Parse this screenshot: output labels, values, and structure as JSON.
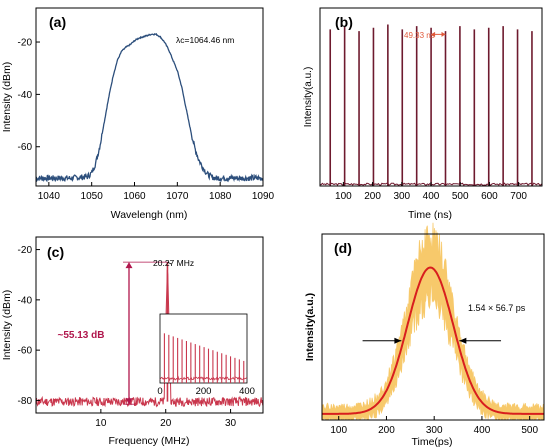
{
  "chart_data": [
    {
      "panel": "(a)",
      "type": "line",
      "xlabel": "Wavelengh (nm)",
      "ylabel": "Intensity (dBm)",
      "xlim": [
        1037,
        1090
      ],
      "ylim": [
        -75,
        -7
      ],
      "xticks": [
        1040,
        1050,
        1060,
        1070,
        1080,
        1090
      ],
      "yticks": [
        -60,
        -40,
        -20
      ],
      "annotation": "λc=1064.46 nm",
      "color": "#2d4f7c",
      "series": [
        {
          "x": [
            1037,
            1045,
            1049,
            1050,
            1051,
            1052,
            1053,
            1054,
            1055,
            1056,
            1057,
            1058,
            1059,
            1060,
            1061,
            1062,
            1063,
            1064,
            1065,
            1066,
            1067,
            1068,
            1069,
            1070,
            1071,
            1072,
            1073,
            1074,
            1075,
            1076,
            1077,
            1078,
            1079,
            1080,
            1090
          ],
          "y": [
            -72,
            -72,
            -71.5,
            -70,
            -66,
            -59,
            -50,
            -41,
            -33,
            -27,
            -23.5,
            -22,
            -21,
            -19.5,
            -18.5,
            -18,
            -17.5,
            -17,
            -17,
            -18,
            -20,
            -23,
            -27,
            -31,
            -37,
            -45,
            -53,
            -60,
            -65,
            -68,
            -70.5,
            -71.5,
            -72,
            -72,
            -72
          ]
        }
      ]
    },
    {
      "panel": "(b)",
      "type": "line",
      "xlabel": "Time (ns)",
      "ylabel": "Intensity(a.u.)",
      "xlim": [
        20,
        780
      ],
      "ylim": [
        0,
        1.08
      ],
      "xticks": [
        100,
        200,
        300,
        400,
        500,
        600,
        700
      ],
      "annotation": "49.33 ns",
      "pulse_period_ns": 49.33,
      "first_pulse_ns": 55,
      "pulse_count": 15,
      "pulse_heights": [
        0.95,
        0.97,
        0.94,
        0.96,
        0.98,
        0.95,
        0.97,
        0.96,
        0.94,
        0.97,
        0.95,
        0.96,
        0.97,
        0.95,
        0.94
      ],
      "color": "#6e1a2e"
    },
    {
      "panel": "(c)",
      "type": "line",
      "xlabel": "Frequency (MHz)",
      "ylabel": "Intensity (dBm)",
      "xlim": [
        0,
        35
      ],
      "ylim": [
        -85,
        -15
      ],
      "xticks": [
        10,
        20,
        30
      ],
      "yticks": [
        -80,
        -60,
        -40,
        -20
      ],
      "peak_label": "20.27 MHz",
      "peak_x": 20.27,
      "peak_y": -25,
      "noise_floor": -80.5,
      "snr_label": "~55.13 dB",
      "color": "#c9374d",
      "inset": {
        "type": "bar",
        "xlim": [
          0,
          400
        ],
        "xticks": [
          0,
          200,
          400
        ],
        "harmonic_spacing": 20.27,
        "harmonic_count": 19,
        "start_height": 0.72,
        "end_height": 0.32
      }
    },
    {
      "panel": "(d)",
      "type": "line",
      "xlabel": "Time(ps)",
      "ylabel": "Intensity(a.u.)",
      "xlim": [
        65,
        530
      ],
      "ylim": [
        0,
        1.22
      ],
      "xticks": [
        100,
        200,
        300,
        400,
        500
      ],
      "annotation": "1.54 × 56.7 ps",
      "fit_center": 292,
      "fit_width_sigma": 48,
      "fit_peak": 1.0,
      "colors": {
        "data": "#f7c96b",
        "fit": "#d81e1e"
      }
    }
  ]
}
